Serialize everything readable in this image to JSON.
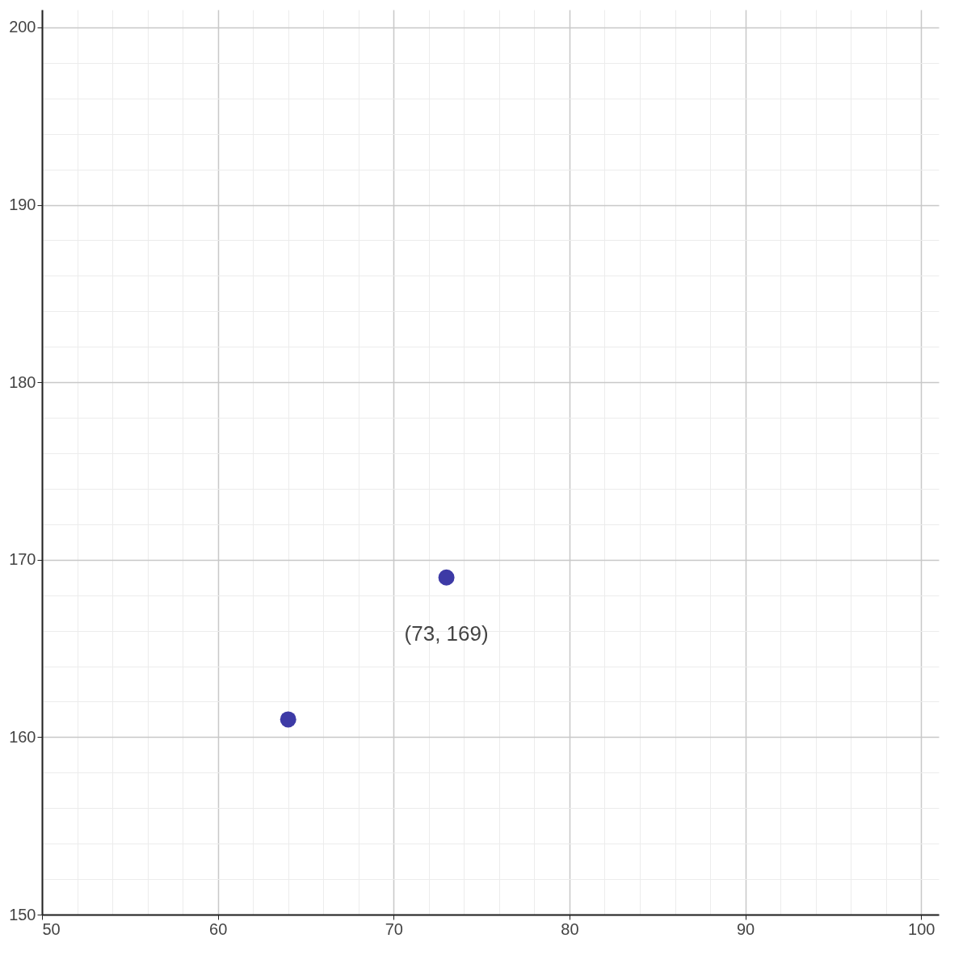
{
  "chart_data": {
    "type": "scatter",
    "x": [
      64,
      73
    ],
    "values": [
      161,
      169
    ],
    "color": "#3d3aa6",
    "marker": "circle",
    "xlim": [
      50,
      101
    ],
    "ylim": [
      150,
      201
    ],
    "xticks": [
      50,
      {
        "value": 52,
        "label": null
      },
      {
        "value": 54,
        "label": null
      },
      {
        "value": 56,
        "label": null
      },
      {
        "value": 58,
        "label": null
      },
      60,
      {
        "value": 62,
        "label": null
      },
      {
        "value": 64,
        "label": null
      },
      {
        "value": 66,
        "label": null
      },
      {
        "value": 68,
        "label": null
      },
      70,
      {
        "value": 72,
        "label": null
      },
      {
        "value": 74,
        "label": null
      },
      {
        "value": 76,
        "label": null
      },
      {
        "value": 78,
        "label": null
      },
      80,
      {
        "value": 82,
        "label": null
      },
      {
        "value": 84,
        "label": null
      },
      {
        "value": 86,
        "label": null
      },
      {
        "value": 88,
        "label": null
      },
      90,
      {
        "value": 92,
        "label": null
      },
      {
        "value": 94,
        "label": null
      },
      {
        "value": 96,
        "label": null
      },
      {
        "value": 98,
        "label": null
      },
      100
    ],
    "yticks": [
      150,
      {
        "value": 152,
        "label": null
      },
      {
        "value": 154,
        "label": null
      },
      {
        "value": 156,
        "label": null
      },
      {
        "value": 158,
        "label": null
      },
      160,
      {
        "value": 162,
        "label": null
      },
      {
        "value": 164,
        "label": null
      },
      {
        "value": 166,
        "label": null
      },
      {
        "value": 168,
        "label": null
      },
      170,
      {
        "value": 172,
        "label": null
      },
      {
        "value": 174,
        "label": null
      },
      {
        "value": 176,
        "label": null
      },
      {
        "value": 178,
        "label": null
      },
      180,
      {
        "value": 182,
        "label": null
      },
      {
        "value": 184,
        "label": null
      },
      {
        "value": 186,
        "label": null
      },
      {
        "value": 188,
        "label": null
      },
      190,
      {
        "value": 192,
        "label": null
      },
      {
        "value": 194,
        "label": null
      },
      {
        "value": 196,
        "label": null
      },
      {
        "value": 198,
        "label": null
      },
      200
    ],
    "grid": true,
    "annotations": [
      {
        "text": "(73, 169)",
        "x": 73,
        "y": 169
      }
    ]
  }
}
